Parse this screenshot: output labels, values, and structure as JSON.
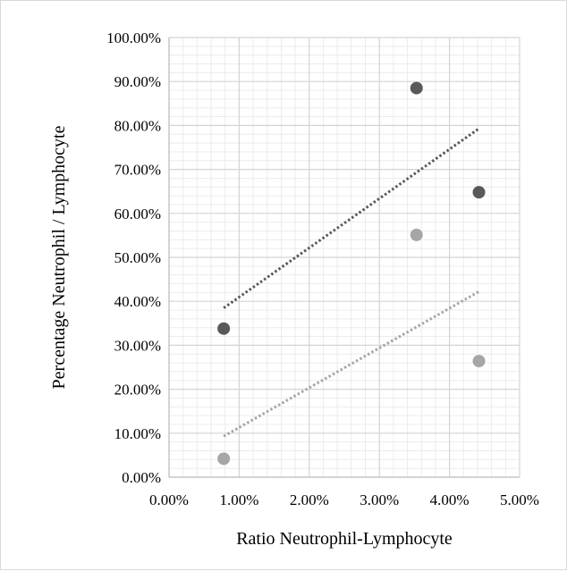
{
  "chart_data": {
    "type": "scatter",
    "title": "",
    "xlabel": "Ratio Neutrophil-Lymphocyte",
    "ylabel": "Percentage Neutrophil / Lymphocyte",
    "xlim": [
      0,
      0.05
    ],
    "ylim": [
      0,
      1.0
    ],
    "x_ticks": [
      0,
      0.01,
      0.02,
      0.03,
      0.04,
      0.05
    ],
    "x_tick_labels": [
      "0.00%",
      "1.00%",
      "2.00%",
      "3.00%",
      "4.00%",
      "5.00%"
    ],
    "y_ticks": [
      0,
      0.1,
      0.2,
      0.3,
      0.4,
      0.5,
      0.6,
      0.7,
      0.8,
      0.9,
      1.0
    ],
    "y_tick_labels": [
      "0.00%",
      "10.00%",
      "20.00%",
      "30.00%",
      "40.00%",
      "50.00%",
      "60.00%",
      "70.00%",
      "80.00%",
      "90.00%",
      "100.00%"
    ],
    "grid": true,
    "minor_grid": true,
    "legend": "none",
    "series": [
      {
        "color": "#595959",
        "points": [
          {
            "x": 0.0078,
            "y": 0.338
          },
          {
            "x": 0.0353,
            "y": 0.885
          },
          {
            "x": 0.0442,
            "y": 0.648
          }
        ],
        "trendline": {
          "type": "linear",
          "x_range": [
            0.0078,
            0.0442
          ]
        }
      },
      {
        "color": "#a6a6a6",
        "points": [
          {
            "x": 0.0078,
            "y": 0.042
          },
          {
            "x": 0.0353,
            "y": 0.551
          },
          {
            "x": 0.0442,
            "y": 0.264
          }
        ],
        "trendline": {
          "type": "linear",
          "x_range": [
            0.0078,
            0.0442
          ]
        }
      }
    ]
  }
}
